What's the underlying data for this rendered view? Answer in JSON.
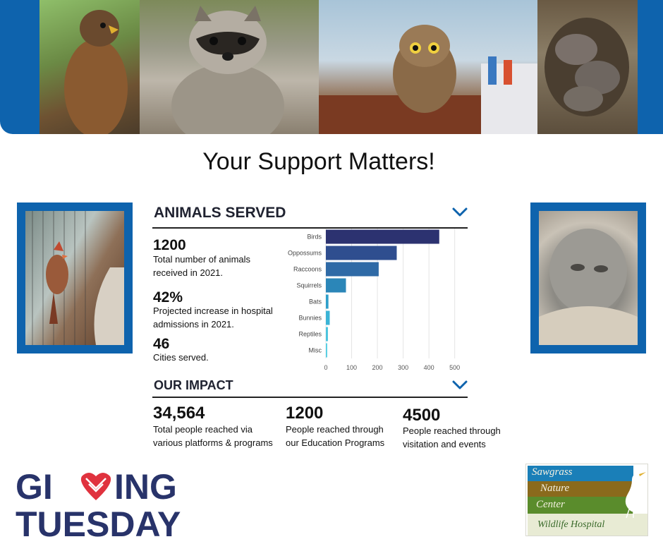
{
  "photos": {
    "top": [
      "hawk-photo",
      "raccoon-photo",
      "owl-photo",
      "rabbits-photo"
    ],
    "left": "cardinal-photo",
    "right": "owlet-photo"
  },
  "title": "Your Support Matters!",
  "animals_served": {
    "heading": "ANIMALS SERVED",
    "stats": [
      {
        "value": "1200",
        "text": "Total number of animals received in 2021."
      },
      {
        "value": "42%",
        "text": "Projected increase in hospital admissions in 2021."
      },
      {
        "value": "46",
        "text": "Cities served."
      }
    ]
  },
  "chart_data": {
    "type": "bar",
    "orientation": "horizontal",
    "categories": [
      "Birds",
      "Oppossums",
      "Raccoons",
      "Squirrels",
      "Bats",
      "Bunnies",
      "Reptiles",
      "Misc"
    ],
    "values": [
      440,
      275,
      205,
      78,
      10,
      15,
      8,
      4
    ],
    "xticks": [
      0,
      100,
      200,
      300,
      400,
      500
    ],
    "xlim": [
      0,
      520
    ],
    "colors": [
      "#2c3270",
      "#2f4e8f",
      "#2f6aa6",
      "#2b86b8",
      "#2e9fca",
      "#3bb4d6",
      "#4ac4de",
      "#5bd0e4"
    ],
    "grid": true
  },
  "impact": {
    "heading": "OUR IMPACT",
    "stats": [
      {
        "value": "34,564",
        "text": "Total people reached via various platforms & programs"
      },
      {
        "value": "1200",
        "text": "People reached through our Education Programs"
      },
      {
        "value": "4500",
        "text": "People reached through visitation and events"
      }
    ]
  },
  "giving_tuesday": {
    "line1": "GIVING",
    "line2": "TUESDAY"
  },
  "sawgrass_logo": {
    "l1": "Sawgrass",
    "l2": "Nature",
    "l3": "Center",
    "l4": "Wildlife Hospital"
  },
  "colors": {
    "accent": "#0e63ad",
    "navy": "#28336a",
    "heart": "#e0323e"
  }
}
